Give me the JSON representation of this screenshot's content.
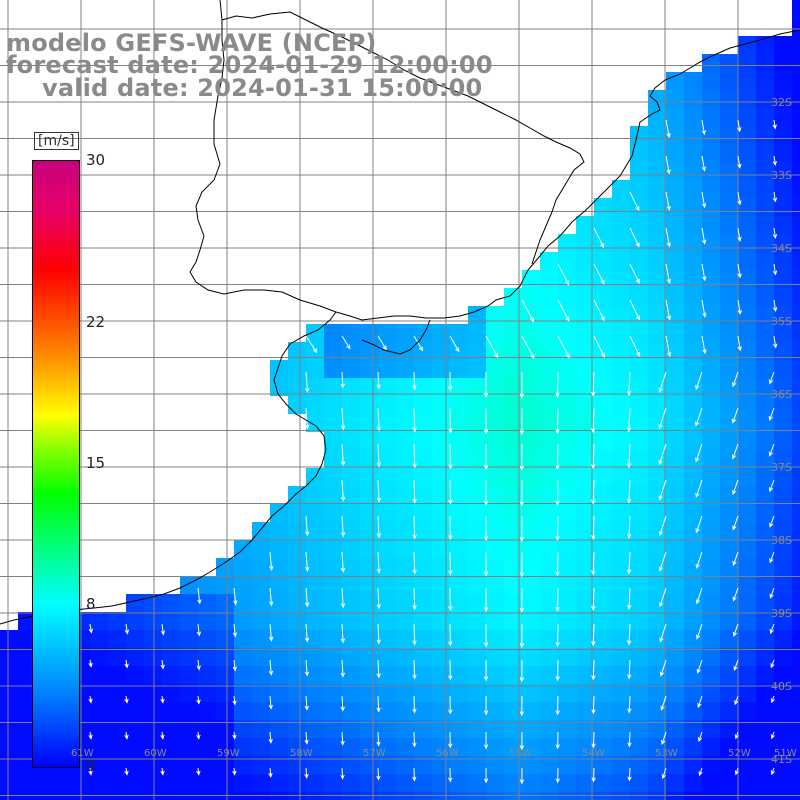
{
  "title": {
    "line1": "modelo GEFS-WAVE (NCEP)",
    "line2": "forecast date: 2024-01-29 12:00:00",
    "line3": "valid date: 2024-01-31 15:00:00"
  },
  "colorbar": {
    "units": "[m/s]",
    "ticks": [
      {
        "label": "30",
        "value": 30
      },
      {
        "label": "22",
        "value": 22
      },
      {
        "label": "15",
        "value": 15
      },
      {
        "label": "8",
        "value": 8
      },
      {
        "label": "0",
        "value": 0
      }
    ],
    "min": 0,
    "max": 30,
    "colors": [
      "#0000ff",
      "#00ffff",
      "#00ff00",
      "#ffff00",
      "#ff0000",
      "#c8007c"
    ]
  },
  "map": {
    "lat_labels": [
      {
        "label": "32S",
        "lat": -32
      },
      {
        "label": "33S",
        "lat": -33
      },
      {
        "label": "34S",
        "lat": -34
      },
      {
        "label": "35S",
        "lat": -35
      },
      {
        "label": "36S",
        "lat": -36
      },
      {
        "label": "37S",
        "lat": -37
      },
      {
        "label": "38S",
        "lat": -38
      },
      {
        "label": "39S",
        "lat": -39
      },
      {
        "label": "40S",
        "lat": -40
      },
      {
        "label": "41S",
        "lat": -41
      }
    ],
    "lon_labels": [
      {
        "label": "61W",
        "lon": -61
      },
      {
        "label": "60W",
        "lon": -60
      },
      {
        "label": "59W",
        "lon": -59
      },
      {
        "label": "58W",
        "lon": -58
      },
      {
        "label": "57W",
        "lon": -57
      },
      {
        "label": "56W",
        "lon": -56
      },
      {
        "label": "55W",
        "lon": -55
      },
      {
        "label": "54W",
        "lon": -54
      },
      {
        "label": "53W",
        "lon": -53
      },
      {
        "label": "52W",
        "lon": -52
      },
      {
        "label": "51W",
        "lon": -51
      }
    ],
    "wind_direction": "southward",
    "colors": {
      "land": "#ffffff",
      "coast": "#000000",
      "grid": "#808080",
      "arrow": "#ffffff"
    }
  }
}
